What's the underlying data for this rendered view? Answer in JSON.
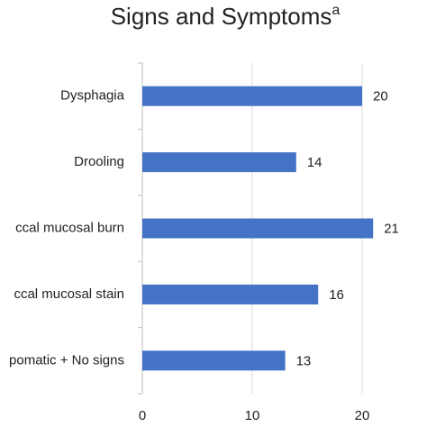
{
  "chart_data": {
    "type": "barh",
    "title": "Signs and Symptoms",
    "title_superscript": "a",
    "categories": [
      "Dysphagia",
      "Drooling",
      "ccal mucosal burn",
      "ccal mucosal stain",
      "pomatic + No signs"
    ],
    "values": [
      20,
      14,
      21,
      16,
      13
    ],
    "color": "#4472c4",
    "xlim": [
      0,
      25
    ],
    "xticks": [
      0,
      10,
      20
    ],
    "grid": true
  }
}
